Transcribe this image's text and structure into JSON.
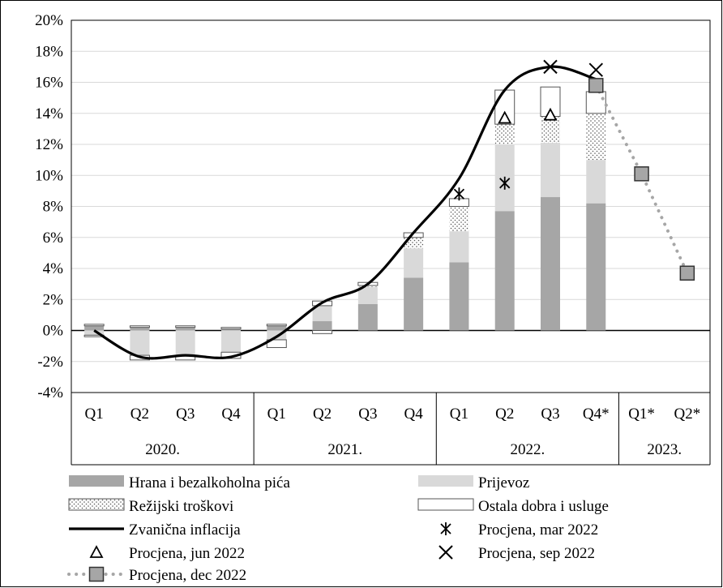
{
  "chart_data": {
    "type": "bar",
    "subtype": "stacked-bar-with-lines",
    "title": "",
    "xlabel": "",
    "ylabel": "",
    "ylim": [
      -4,
      20
    ],
    "y_tick_step": 2,
    "y_tick_suffix": "%",
    "grid": true,
    "legend_position": "bottom",
    "categories": [
      "Q1",
      "Q2",
      "Q3",
      "Q4",
      "Q1",
      "Q2",
      "Q3",
      "Q4",
      "Q1",
      "Q2",
      "Q3",
      "Q4*",
      "Q1*",
      "Q2*"
    ],
    "year_groups": [
      {
        "label": "2020.",
        "count": 4
      },
      {
        "label": "2021.",
        "count": 4
      },
      {
        "label": "2022.",
        "count": 4
      },
      {
        "label": "2023.",
        "count": 2
      }
    ],
    "colors": {
      "food": "#a6a6a6",
      "transport": "#d9d9d9",
      "utilities": "#ffffff",
      "other": "#ffffff",
      "line": "#000000",
      "dec_marker": "#a6a6a6",
      "dec_line": "#a6a6a6",
      "grid": "#d9d9d9"
    },
    "bar_series": [
      {
        "key": "food",
        "name": "Hrana i bezalkoholna pića",
        "values": [
          0.3,
          0.2,
          0.2,
          0.1,
          0.3,
          0.6,
          1.7,
          3.4,
          4.4,
          7.7,
          8.6,
          8.2,
          null,
          null
        ]
      },
      {
        "key": "transport",
        "name": "Prijevoz",
        "values": [
          -0.3,
          -1.6,
          -1.6,
          -1.4,
          -0.6,
          1.0,
          1.1,
          1.9,
          2.0,
          4.3,
          3.5,
          2.8,
          null,
          null
        ]
      },
      {
        "key": "utilities",
        "name": "Režijski troškovi",
        "values": [
          0.0,
          0.0,
          0.0,
          0.0,
          0.0,
          0.0,
          0.1,
          0.7,
          1.6,
          1.3,
          1.7,
          3.0,
          null,
          null
        ]
      },
      {
        "key": "other",
        "name": "Ostala dobra i usluge",
        "values": [
          0.1,
          0.1,
          0.1,
          0.1,
          0.1,
          0.3,
          0.2,
          0.3,
          0.5,
          2.2,
          1.9,
          1.4,
          null,
          null
        ]
      },
      {
        "key": "negother",
        "name": "",
        "values": [
          -0.1,
          -0.3,
          -0.3,
          -0.4,
          -0.5,
          -0.2,
          0.0,
          0.0,
          0.0,
          0.0,
          0.0,
          0.0,
          null,
          null
        ]
      }
    ],
    "line_series": [
      {
        "key": "official",
        "name": "Zvanična inflacija",
        "values": [
          0.0,
          -1.7,
          -1.6,
          -1.7,
          -0.4,
          1.8,
          3.0,
          6.3,
          9.8,
          15.5,
          17.0,
          16.2,
          null,
          null
        ]
      }
    ],
    "marker_series": [
      {
        "key": "mar2022",
        "name": "Procjena, mar 2022",
        "symbol": "asterisk",
        "points": [
          {
            "index": 8,
            "value": 8.8
          },
          {
            "index": 9,
            "value": 9.5
          }
        ]
      },
      {
        "key": "jun2022",
        "name": "Procjena, jun 2022",
        "symbol": "triangle",
        "points": [
          {
            "index": 9,
            "value": 13.7
          },
          {
            "index": 10,
            "value": 13.9
          }
        ]
      },
      {
        "key": "sep2022",
        "name": "Procjena, sep 2022",
        "symbol": "x",
        "points": [
          {
            "index": 10,
            "value": 17.0
          },
          {
            "index": 11,
            "value": 16.8
          }
        ]
      },
      {
        "key": "dec2022",
        "name": "Procjena, dec 2022",
        "symbol": "square-dotted",
        "points": [
          {
            "index": 11,
            "value": 15.8
          },
          {
            "index": 12,
            "value": 10.1
          },
          {
            "index": 13,
            "value": 3.7
          }
        ]
      }
    ],
    "legend": [
      {
        "key": "food",
        "label": "Hrana i bezalkoholna pića"
      },
      {
        "key": "transport",
        "label": "Prijevoz"
      },
      {
        "key": "utilities",
        "label": "Režijski troškovi"
      },
      {
        "key": "other",
        "label": "Ostala dobra i usluge"
      },
      {
        "key": "official",
        "label": "Zvanična inflacija"
      },
      {
        "key": "mar2022",
        "label": "Procjena, mar 2022"
      },
      {
        "key": "jun2022",
        "label": "Procjena, jun 2022"
      },
      {
        "key": "sep2022",
        "label": "Procjena, sep 2022"
      },
      {
        "key": "dec2022",
        "label": "Procjena, dec 2022"
      }
    ]
  }
}
